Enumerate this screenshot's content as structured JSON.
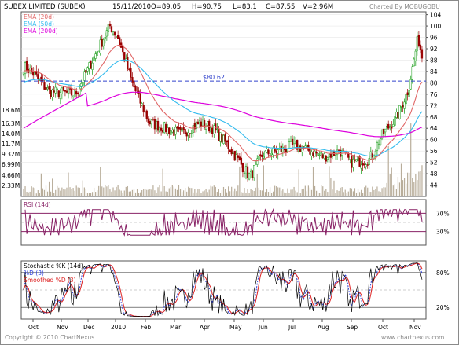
{
  "header": {
    "name": "SUBEX LIMITED (SUBEX)",
    "date": "15/11/2010",
    "open": "O=89.05",
    "high": "H=90.75",
    "low": "L=83.1",
    "close": "C=87.55",
    "volume": "V=2.96M",
    "credit": "Charted By MOBUGOBU"
  },
  "footer": {
    "copyright": "Copyright © 2010 ChartNexus",
    "site": "www.chartnexus.com"
  },
  "chart_data": [
    {
      "type": "candlestick",
      "legend": [
        {
          "name": "EMA (20d)",
          "color": "#e06666"
        },
        {
          "name": "EMA (50d)",
          "color": "#33bbee"
        },
        {
          "name": "EMA (200d)",
          "color": "#dd00dd"
        }
      ],
      "reference_line": {
        "value": 80.62,
        "label": "$80.62",
        "color": "#3344cc"
      },
      "price_ticks": [
        104,
        100,
        96,
        92,
        88,
        84,
        80,
        76,
        72,
        68,
        64,
        60,
        56,
        52,
        48,
        44
      ],
      "ylim": [
        40,
        105
      ],
      "volume_ticks": [
        "18.6M",
        "16.3M",
        "14.0M",
        "11.7M",
        "9.32M",
        "6.99M",
        "4.66M",
        "2.33M"
      ],
      "volume_max_millions": 21.0,
      "x_labels": [
        "Oct",
        "Nov",
        "Dec",
        "2010",
        "Feb",
        "Mar",
        "Apr",
        "May",
        "Jun",
        "Jul",
        "Aug",
        "Sep",
        "Oct",
        "Nov"
      ],
      "anchors": [
        {
          "month": "Oct 2009",
          "close": 80
        },
        {
          "month": "Nov 2009",
          "close": 75
        },
        {
          "month": "Dec 2009",
          "close": 92
        },
        {
          "month": "Jan 2010",
          "close": 88
        },
        {
          "month": "Feb 2010",
          "close": 66
        },
        {
          "month": "Mar 2010",
          "close": 63
        },
        {
          "month": "Apr 2010",
          "close": 66
        },
        {
          "month": "May 2010",
          "close": 52
        },
        {
          "month": "Jun 2010",
          "close": 55
        },
        {
          "month": "Jul 2010",
          "close": 57
        },
        {
          "month": "Aug 2010",
          "close": 55
        },
        {
          "month": "Sep 2010",
          "close": 52
        },
        {
          "month": "Oct 2010",
          "close": 63
        },
        {
          "month": "Nov 2010",
          "close": 87.55
        }
      ]
    },
    {
      "type": "line",
      "legend": [
        {
          "name": "RSI (14d)",
          "color": "#882266"
        }
      ],
      "ylim": [
        0,
        100
      ],
      "levels": [
        70,
        50,
        30
      ],
      "tick_labels": [
        "70%",
        "30%"
      ]
    },
    {
      "type": "line",
      "legend": [
        {
          "name": "Stochastic %K (14d)",
          "color": "#000000"
        },
        {
          "name": "%D (3)",
          "color": "#3344dd"
        },
        {
          "name": "Smoothed %D (3)",
          "color": "#dd2222"
        }
      ],
      "ylim": [
        0,
        100
      ],
      "levels": [
        80,
        50,
        20
      ],
      "tick_labels": [
        "80%",
        "20%"
      ]
    }
  ]
}
